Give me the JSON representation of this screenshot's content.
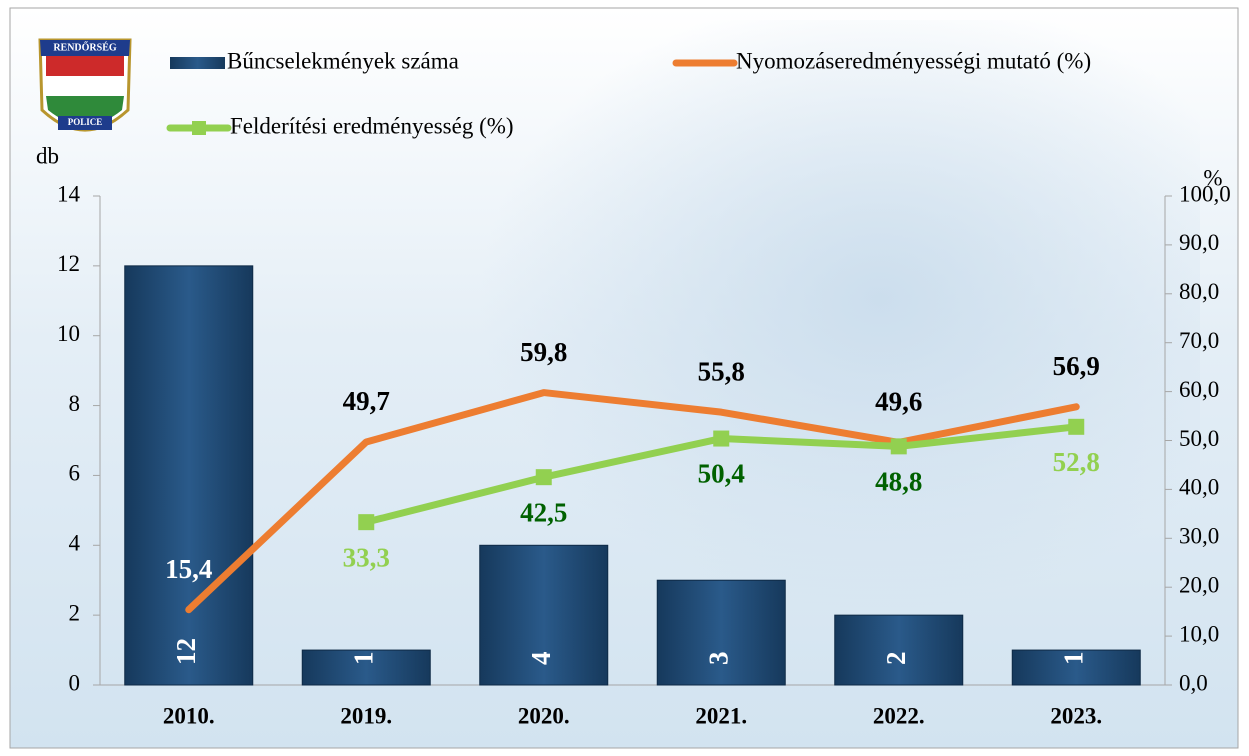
{
  "chart_data": {
    "type": "combo",
    "logo": {
      "top": "RENDŐRSÉG",
      "bottom": "POLICE"
    },
    "ylabel": "db",
    "y2label": "%",
    "categories": [
      "2010.",
      "2019.",
      "2020.",
      "2021.",
      "2022.",
      "2023."
    ],
    "series": [
      {
        "name": "Bűncselekmények száma",
        "type": "bar",
        "color": "#1f4e79",
        "label_color": "#ffffff",
        "values": [
          12,
          1,
          4,
          3,
          2,
          1
        ]
      },
      {
        "name": "Nyomozáseredményességi mutató (%)",
        "type": "line",
        "axis": "y2",
        "color": "#ed7d31",
        "label_colors": [
          "#ffffff",
          "#000000",
          "#000000",
          "#000000",
          "#000000",
          "#000000"
        ],
        "values": [
          15.4,
          49.7,
          59.8,
          55.8,
          49.6,
          56.9
        ],
        "value_labels": [
          "15,4",
          "49,7",
          "59,8",
          "55,8",
          "49,6",
          "56,9"
        ]
      },
      {
        "name": "Felderítési eredményesség (%)",
        "type": "line",
        "axis": "y2",
        "color": "#92d050",
        "marker": "square",
        "label_colors": [
          null,
          "#92d050",
          "#006100",
          "#006100",
          "#006100",
          "#92d050"
        ],
        "values": [
          null,
          33.3,
          42.5,
          50.4,
          48.8,
          52.8
        ],
        "value_labels": [
          null,
          "33,3",
          "42,5",
          "50,4",
          "48,8",
          "52,8"
        ]
      }
    ],
    "ylim": [
      0,
      14
    ],
    "yticks": [
      0,
      2,
      4,
      6,
      8,
      10,
      12,
      14
    ],
    "y2lim": [
      0,
      100
    ],
    "y2ticks": [
      {
        "value": 0,
        "label": "0,0"
      },
      {
        "value": 10,
        "label": "10,0"
      },
      {
        "value": 20,
        "label": "20,0"
      },
      {
        "value": 30,
        "label": "30,0"
      },
      {
        "value": 40,
        "label": "40,0"
      },
      {
        "value": 50,
        "label": "50,0"
      },
      {
        "value": 60,
        "label": "60,0"
      },
      {
        "value": 70,
        "label": "70,0"
      },
      {
        "value": 80,
        "label": "80,0"
      },
      {
        "value": 90,
        "label": "90,0"
      },
      {
        "value": 100,
        "label": "100,0"
      }
    ]
  }
}
